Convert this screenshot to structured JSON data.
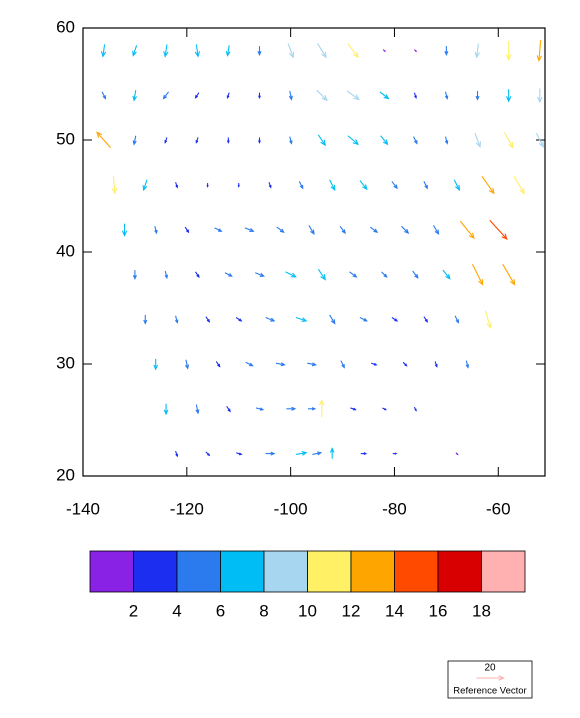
{
  "chart_data": {
    "type": "vector",
    "xlim": [
      -140,
      -51
    ],
    "ylim": [
      20,
      60
    ],
    "xticks": [
      -140,
      -120,
      -100,
      -80,
      -60
    ],
    "yticks": [
      20,
      30,
      40,
      50,
      60
    ],
    "rows": [
      {
        "lat": 58,
        "lon": [
          -136,
          -130,
          -124,
          -118,
          -112,
          -106,
          -100,
          -94,
          -88,
          -82,
          -76,
          -70,
          -64,
          -58,
          -52
        ],
        "u": [
          -1,
          -2,
          -1,
          1,
          -1,
          0,
          3,
          5,
          6,
          1,
          1,
          0,
          -1,
          0,
          -1
        ],
        "v": [
          -7,
          -6,
          -7,
          -7,
          -6,
          -5,
          -8,
          -8,
          -8,
          -1,
          -1,
          -5,
          -8,
          -11,
          -12
        ]
      },
      {
        "lat": 54,
        "lon": [
          -136,
          -130,
          -124,
          -118,
          -112,
          -106,
          -100,
          -94,
          -88,
          -82,
          -76,
          -70,
          -64,
          -58,
          -52
        ],
        "u": [
          2,
          -1,
          -3,
          -2,
          -1,
          0,
          1,
          6,
          7,
          5,
          1,
          1,
          0,
          0,
          0
        ],
        "v": [
          -4,
          -6,
          -4,
          -3,
          -3,
          -3,
          -5,
          -6,
          -5,
          -4,
          -3,
          -4,
          -5,
          -7,
          -8
        ]
      },
      {
        "lat": 50,
        "lon": [
          -136,
          -130,
          -124,
          -118,
          -112,
          -106,
          -100,
          -94,
          -88,
          -82,
          -76,
          -70,
          -64,
          -58,
          -52
        ],
        "u": [
          -8,
          -1,
          -1,
          -1,
          0,
          0,
          1,
          4,
          6,
          4,
          2,
          1,
          3,
          5,
          4
        ],
        "v": [
          9,
          -5,
          -3,
          -3,
          -3,
          -3,
          -4,
          -6,
          -5,
          -5,
          -4,
          -4,
          -8,
          -9,
          -8
        ]
      },
      {
        "lat": 46,
        "lon": [
          -134,
          -128,
          -122,
          -116,
          -110,
          -104,
          -98,
          -92,
          -86,
          -80,
          -74,
          -68,
          -62,
          -56
        ],
        "u": [
          1,
          -2,
          1,
          0,
          0,
          1,
          2,
          3,
          4,
          3,
          2,
          3,
          7,
          6
        ],
        "v": [
          -10,
          -6,
          -3,
          -2,
          -2,
          -3,
          -4,
          -6,
          -5,
          -4,
          -4,
          -6,
          -10,
          -10
        ]
      },
      {
        "lat": 42,
        "lon": [
          -132,
          -126,
          -120,
          -114,
          -108,
          -102,
          -96,
          -90,
          -84,
          -78,
          -72,
          -66,
          -60
        ],
        "u": [
          0,
          1,
          2,
          4,
          5,
          4,
          3,
          3,
          4,
          4,
          3,
          8,
          10
        ],
        "v": [
          -7,
          -4,
          -3,
          -2,
          -2,
          -3,
          -5,
          -4,
          -3,
          -4,
          -5,
          -10,
          -11
        ]
      },
      {
        "lat": 38,
        "lon": [
          -130,
          -124,
          -118,
          -112,
          -106,
          -100,
          -94,
          -88,
          -82,
          -76,
          -70,
          -64,
          -58
        ],
        "u": [
          0,
          1,
          2,
          4,
          5,
          6,
          4,
          4,
          3,
          3,
          4,
          6,
          7
        ],
        "v": [
          -5,
          -4,
          -3,
          -2,
          -2,
          -3,
          -6,
          -3,
          -3,
          -4,
          -5,
          -12,
          -12
        ]
      },
      {
        "lat": 34,
        "lon": [
          -128,
          -122,
          -116,
          -110,
          -104,
          -98,
          -92,
          -86,
          -80,
          -74,
          -68,
          -62
        ],
        "u": [
          0,
          1,
          2,
          3,
          5,
          6,
          3,
          4,
          3,
          2,
          2,
          3
        ],
        "v": [
          -5,
          -4,
          -3,
          -2,
          -2,
          -2,
          -5,
          -2,
          -2,
          -3,
          -4,
          -10
        ]
      },
      {
        "lat": 30,
        "lon": [
          -126,
          -120,
          -114,
          -108,
          -102,
          -96,
          -90,
          -84,
          -78,
          -72,
          -66
        ],
        "u": [
          0,
          1,
          2,
          4,
          5,
          5,
          2,
          3,
          2,
          1,
          1
        ],
        "v": [
          -6,
          -5,
          -3,
          -2,
          -1,
          -1,
          -4,
          -1,
          -2,
          -3,
          -4
        ]
      },
      {
        "lat": 26,
        "lon": [
          -124,
          -118,
          -112,
          -106,
          -100,
          -96,
          -94,
          -88,
          -82,
          -76
        ],
        "u": [
          0,
          1,
          2,
          4,
          5,
          4,
          0,
          3,
          2,
          1
        ],
        "v": [
          -6,
          -5,
          -3,
          -1,
          0,
          0,
          10,
          -1,
          -1,
          -2
        ]
      },
      {
        "lat": 22,
        "lon": [
          -122,
          -116,
          -110,
          -104,
          -98,
          -95,
          -92,
          -86,
          -80,
          -68
        ],
        "u": [
          1,
          2,
          3,
          5,
          6,
          5,
          0,
          3,
          2,
          1
        ],
        "v": [
          -3,
          -2,
          -1,
          0,
          1,
          1,
          6,
          0,
          0,
          -1
        ]
      }
    ],
    "colorbar": {
      "levels": [
        2,
        4,
        6,
        8,
        10,
        12,
        14,
        16,
        18
      ],
      "colors": [
        "#8a22e6",
        "#1c2ff0",
        "#2b7bef",
        "#00bdf5",
        "#a6d6f0",
        "#fff066",
        "#ffa500",
        "#ff4a00",
        "#d80000",
        "#ffb0b0"
      ]
    },
    "reference_vector": {
      "magnitude": 20,
      "label": "Reference Vector"
    }
  }
}
